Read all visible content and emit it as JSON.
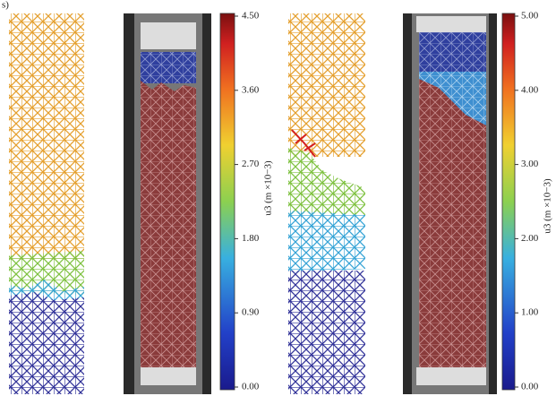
{
  "header": {
    "fragment": "s)"
  },
  "colorbars": [
    {
      "label": "u3 (m ×10−3)",
      "ticks": [
        "4.50",
        "3.60",
        "2.70",
        "1.80",
        "0.90",
        "0.00"
      ]
    },
    {
      "label": "u3 (m ×10−3)",
      "ticks": [
        "5.00",
        "4.00",
        "3.00",
        "2.00",
        "1.00",
        "0.00"
      ]
    }
  ]
}
